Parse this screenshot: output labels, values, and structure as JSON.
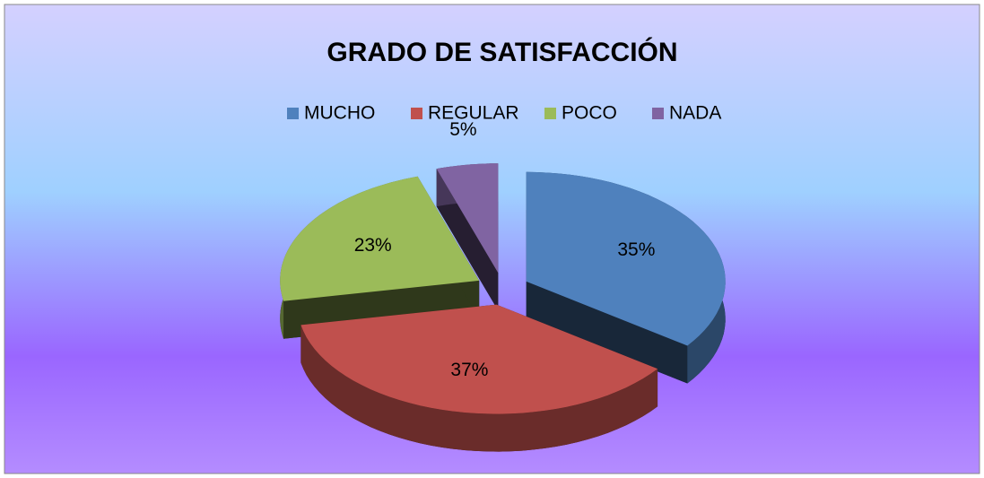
{
  "chart_data": {
    "type": "pie",
    "title": "GRADO DE SATISFACCIÓN",
    "categories": [
      "MUCHO",
      "REGULAR",
      "POCO",
      "NADA"
    ],
    "values": [
      35,
      37,
      23,
      5
    ],
    "value_labels": [
      "35%",
      "37%",
      "23%",
      "5%"
    ],
    "colors": [
      "#4f81bd",
      "#c0504d",
      "#9bbb59",
      "#8064a2"
    ],
    "legend": "top"
  }
}
